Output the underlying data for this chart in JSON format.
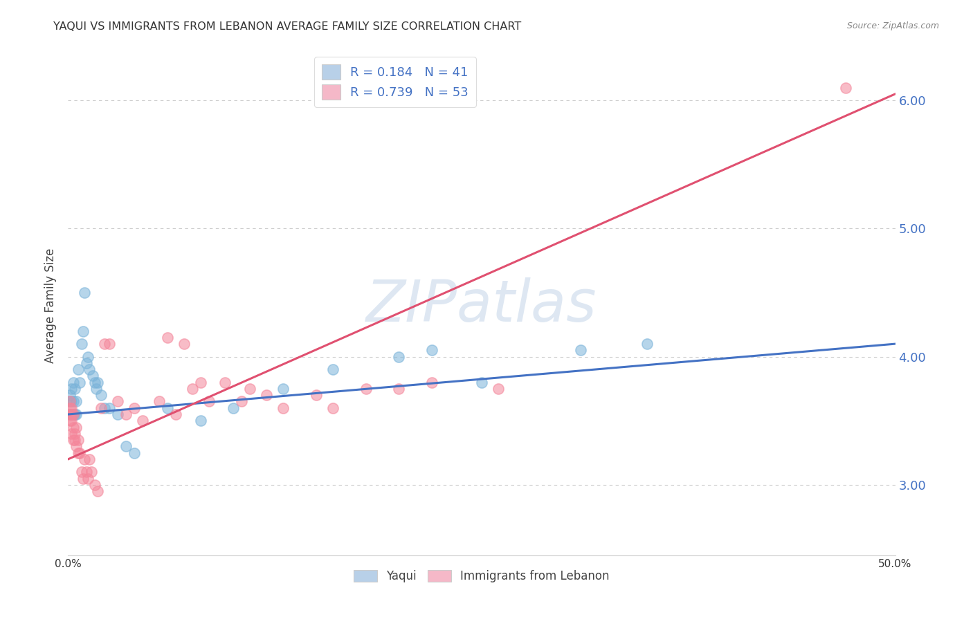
{
  "title": "YAQUI VS IMMIGRANTS FROM LEBANON AVERAGE FAMILY SIZE CORRELATION CHART",
  "source": "Source: ZipAtlas.com",
  "ylabel": "Average Family Size",
  "xlim": [
    0.0,
    0.5
  ],
  "ylim": [
    2.45,
    6.35
  ],
  "yticks_right": [
    3.0,
    4.0,
    5.0,
    6.0
  ],
  "xticks": [
    0.0,
    0.1,
    0.2,
    0.3,
    0.4,
    0.5
  ],
  "xtick_labels": [
    "0.0%",
    "",
    "",
    "",
    "",
    "50.0%"
  ],
  "legend_entries": [
    {
      "label": "R = 0.184   N = 41",
      "color": "#b8d0e8"
    },
    {
      "label": "R = 0.739   N = 53",
      "color": "#f5b8c8"
    }
  ],
  "legend_bottom": [
    "Yaqui",
    "Immigrants from Lebanon"
  ],
  "legend_bottom_colors": [
    "#b8d0e8",
    "#f5b8c8"
  ],
  "yaqui_x": [
    0.001,
    0.001,
    0.001,
    0.002,
    0.002,
    0.002,
    0.003,
    0.003,
    0.003,
    0.004,
    0.004,
    0.005,
    0.005,
    0.006,
    0.007,
    0.008,
    0.009,
    0.01,
    0.011,
    0.012,
    0.013,
    0.015,
    0.016,
    0.017,
    0.018,
    0.02,
    0.022,
    0.025,
    0.03,
    0.035,
    0.04,
    0.06,
    0.08,
    0.1,
    0.13,
    0.16,
    0.2,
    0.22,
    0.25,
    0.31,
    0.35
  ],
  "yaqui_y": [
    3.55,
    3.65,
    3.7,
    3.55,
    3.65,
    3.75,
    3.55,
    3.65,
    3.8,
    3.55,
    3.75,
    3.55,
    3.65,
    3.9,
    3.8,
    4.1,
    4.2,
    4.5,
    3.95,
    4.0,
    3.9,
    3.85,
    3.8,
    3.75,
    3.8,
    3.7,
    3.6,
    3.6,
    3.55,
    3.3,
    3.25,
    3.6,
    3.5,
    3.6,
    3.75,
    3.9,
    4.0,
    4.05,
    3.8,
    4.05,
    4.1
  ],
  "lebanon_x": [
    0.001,
    0.001,
    0.001,
    0.001,
    0.002,
    0.002,
    0.002,
    0.002,
    0.003,
    0.003,
    0.003,
    0.004,
    0.004,
    0.005,
    0.005,
    0.006,
    0.006,
    0.007,
    0.008,
    0.009,
    0.01,
    0.011,
    0.012,
    0.013,
    0.014,
    0.016,
    0.018,
    0.02,
    0.022,
    0.025,
    0.03,
    0.035,
    0.04,
    0.045,
    0.055,
    0.06,
    0.065,
    0.07,
    0.075,
    0.08,
    0.085,
    0.095,
    0.105,
    0.11,
    0.12,
    0.13,
    0.15,
    0.16,
    0.18,
    0.2,
    0.22,
    0.26,
    0.47
  ],
  "lebanon_y": [
    3.5,
    3.55,
    3.6,
    3.65,
    3.4,
    3.5,
    3.55,
    3.6,
    3.35,
    3.45,
    3.55,
    3.35,
    3.4,
    3.3,
    3.45,
    3.25,
    3.35,
    3.25,
    3.1,
    3.05,
    3.2,
    3.1,
    3.05,
    3.2,
    3.1,
    3.0,
    2.95,
    3.6,
    4.1,
    4.1,
    3.65,
    3.55,
    3.6,
    3.5,
    3.65,
    4.15,
    3.55,
    4.1,
    3.75,
    3.8,
    3.65,
    3.8,
    3.65,
    3.75,
    3.7,
    3.6,
    3.7,
    3.6,
    3.75,
    3.75,
    3.8,
    3.75,
    6.1
  ],
  "yaqui_trend_x": [
    0.0,
    0.5
  ],
  "yaqui_trend_y": [
    3.55,
    4.1
  ],
  "lebanon_trend_x": [
    0.0,
    0.5
  ],
  "lebanon_trend_y": [
    3.2,
    6.05
  ],
  "dot_size": 120,
  "dot_alpha": 0.55,
  "yaqui_color": "#7ab3d9",
  "yaqui_edge_color": "#7ab3d9",
  "lebanon_color": "#f4869a",
  "lebanon_edge_color": "#f4869a",
  "yaqui_trend_color": "#4472c4",
  "lebanon_trend_color": "#e05070",
  "watermark": "ZIPatlas",
  "watermark_color": "#c8d8ea",
  "bg_color": "#ffffff",
  "grid_color": "#cccccc"
}
